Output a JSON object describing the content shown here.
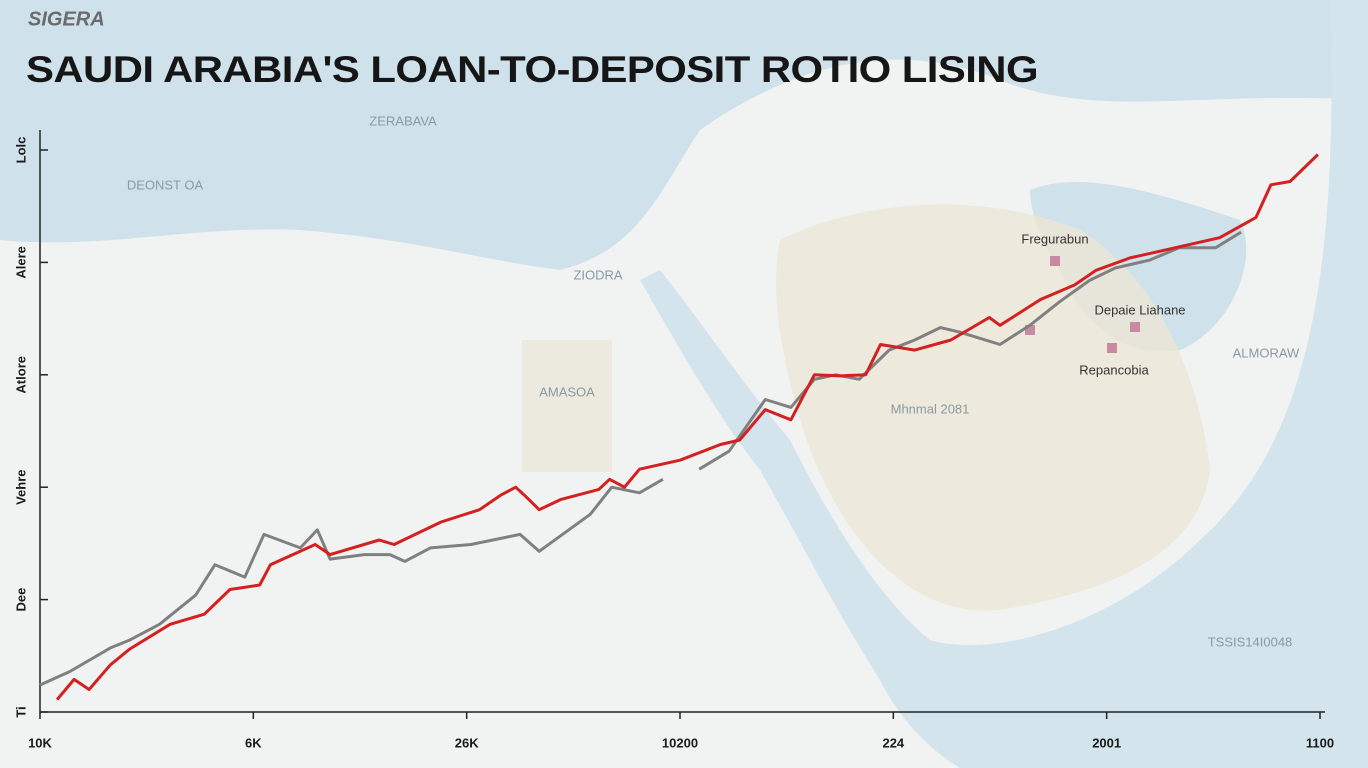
{
  "chart_data": {
    "type": "line",
    "subtitle": "SIGERA",
    "title": "SAUDI ARABIA'S LOAN-TO-DEPOSIT ROTIO LISING",
    "xlim": [
      0,
      6
    ],
    "xticks": [
      {
        "value": 0,
        "label": "10K"
      },
      {
        "value": 1,
        "label": "6K"
      },
      {
        "value": 2,
        "label": "26K"
      },
      {
        "value": 3,
        "label": "10200"
      },
      {
        "value": 4,
        "label": "224"
      },
      {
        "value": 5,
        "label": "2001"
      },
      {
        "value": 6,
        "label": "1100"
      }
    ],
    "ylim": [
      0,
      5
    ],
    "yticks": [
      {
        "value": 0,
        "label": "Ti"
      },
      {
        "value": 1,
        "label": "Dee"
      },
      {
        "value": 2,
        "label": "Vehre"
      },
      {
        "value": 3,
        "label": "Atlore"
      },
      {
        "value": 4,
        "label": "Alere"
      },
      {
        "value": 5,
        "label": "Lolc"
      }
    ],
    "series": [
      {
        "color": "#d42020",
        "x": [
          0.08,
          0.16,
          0.23,
          0.33,
          0.42,
          0.61,
          0.77,
          0.89,
          1.03,
          1.08,
          1.29,
          1.36,
          1.59,
          1.66,
          1.88,
          2.06,
          2.16,
          2.23,
          2.27,
          2.34,
          2.44,
          2.62,
          2.67,
          2.74,
          2.81,
          3.0,
          3.19,
          3.28,
          3.4,
          3.52,
          3.63,
          3.75,
          3.87,
          3.94,
          4.1,
          4.27,
          4.45,
          4.5,
          4.69,
          4.85,
          4.95,
          5.11,
          5.32,
          5.53,
          5.7,
          5.77,
          5.86,
          5.99
        ],
        "values": [
          0.11,
          0.29,
          0.2,
          0.42,
          0.56,
          0.78,
          0.87,
          1.09,
          1.13,
          1.31,
          1.49,
          1.4,
          1.53,
          1.49,
          1.69,
          1.8,
          1.93,
          2.0,
          1.93,
          1.8,
          1.89,
          1.98,
          2.07,
          2.0,
          2.16,
          2.24,
          2.38,
          2.42,
          2.69,
          2.6,
          3.0,
          2.99,
          3.0,
          3.27,
          3.22,
          3.31,
          3.51,
          3.44,
          3.67,
          3.8,
          3.93,
          4.04,
          4.13,
          4.22,
          4.4,
          4.69,
          4.72,
          4.96
        ]
      },
      {
        "color": "#808080",
        "x": [
          0,
          0.14,
          0.33,
          0.42,
          0.56,
          0.73,
          0.82,
          0.96,
          1.05,
          1.22,
          1.3,
          1.36,
          1.52,
          1.64,
          1.71,
          1.83,
          2.02,
          2.25,
          2.34,
          2.58,
          2.68,
          2.81,
          2.92,
          null,
          3.09,
          3.23,
          3.4,
          3.52,
          3.63,
          3.73,
          3.84,
          3.98,
          4.1,
          4.22,
          4.31,
          4.5,
          4.64,
          4.78,
          4.92,
          5.04,
          5.2,
          5.34,
          5.51,
          5.63
        ],
        "values": [
          0.24,
          0.36,
          0.57,
          0.64,
          0.78,
          1.04,
          1.31,
          1.2,
          1.58,
          1.46,
          1.62,
          1.36,
          1.4,
          1.4,
          1.34,
          1.46,
          1.49,
          1.58,
          1.43,
          1.76,
          2.0,
          1.95,
          2.07,
          null,
          2.16,
          2.32,
          2.78,
          2.71,
          2.96,
          3.0,
          2.96,
          3.22,
          3.31,
          3.42,
          3.38,
          3.27,
          3.44,
          3.65,
          3.84,
          3.95,
          4.02,
          4.13,
          4.13,
          4.27
        ]
      }
    ],
    "annotations": [
      "ZERABAVA",
      "DEONST OA",
      "ZIODRA",
      "AMASOA",
      "Fregurabun",
      "Depaie Liahane",
      "Repancobia",
      "Mhnmal 2081",
      "ALMORAW",
      "TSSIS14I0048"
    ]
  }
}
